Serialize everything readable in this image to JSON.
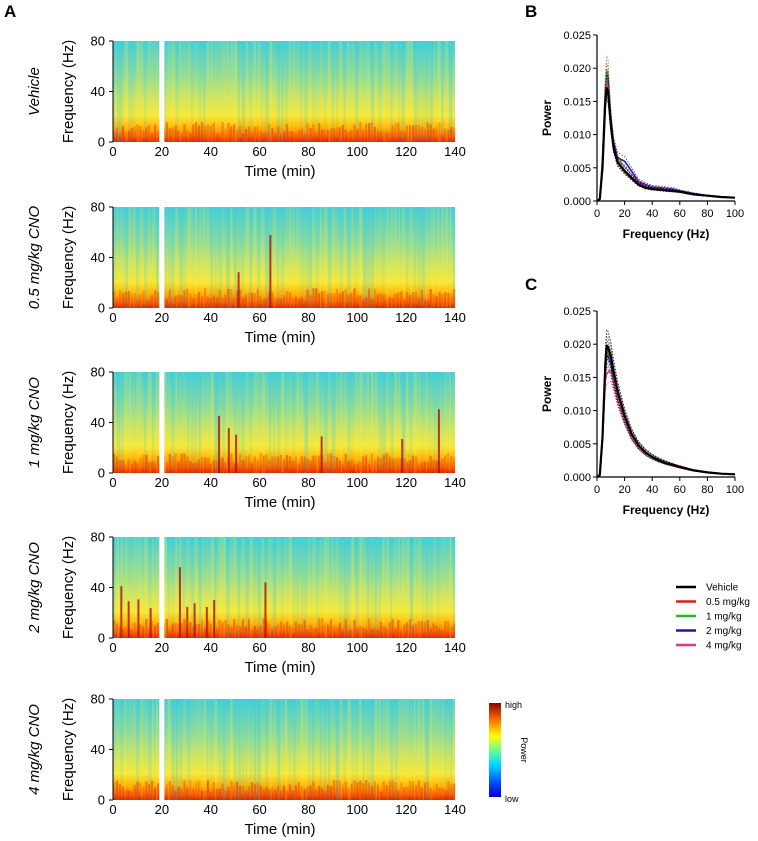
{
  "figure": {
    "panel_a_label": "A",
    "panel_b_label": "B",
    "panel_c_label": "C"
  },
  "colorbar": {
    "high_label": "high",
    "low_label": "low",
    "title": "Power"
  },
  "colors": {
    "spectro_low": "#0000c8",
    "spectro_high": "#8b0000",
    "vehicle": "#000000",
    "dose_0_5": "#e41a1c",
    "dose_1": "#22b822",
    "dose_2": "#1a1aa8",
    "dose_4": "#e0348c"
  },
  "legend": {
    "entries": [
      {
        "label": "Vehicle",
        "color": "#000000"
      },
      {
        "label": "0.5 mg/kg",
        "color": "#e41a1c"
      },
      {
        "label": "1 mg/kg",
        "color": "#22b822"
      },
      {
        "label": "2 mg/kg",
        "color": "#1a1aa8"
      },
      {
        "label": "4 mg/kg",
        "color": "#e0348c"
      }
    ]
  },
  "chart_data": [
    {
      "type": "heatmap",
      "panel": "A",
      "title": "Vehicle",
      "xlabel": "Time (min)",
      "ylabel": "Frequency (Hz)",
      "xlim": [
        0,
        140
      ],
      "ylim": [
        0,
        80
      ],
      "xticks": [
        "0",
        "20",
        "40",
        "60",
        "80",
        "100",
        "120",
        "140"
      ],
      "yticks": [
        "0",
        "40",
        "80"
      ],
      "gap_min": 20,
      "burst_times_min": [],
      "colormap": "jet"
    },
    {
      "type": "heatmap",
      "panel": "A",
      "title": "0.5 mg/kg CNO",
      "xlabel": "Time (min)",
      "ylabel": "Frequency (Hz)",
      "xlim": [
        0,
        140
      ],
      "ylim": [
        0,
        80
      ],
      "xticks": [
        "0",
        "20",
        "40",
        "60",
        "80",
        "100",
        "120",
        "140"
      ],
      "yticks": [
        "0",
        "40",
        "80"
      ],
      "gap_min": 20,
      "burst_times_min": [
        51,
        64
      ],
      "colormap": "jet"
    },
    {
      "type": "heatmap",
      "panel": "A",
      "title": "1 mg/kg CNO",
      "xlabel": "Time (min)",
      "ylabel": "Frequency (Hz)",
      "xlim": [
        0,
        140
      ],
      "ylim": [
        0,
        80
      ],
      "xticks": [
        "0",
        "20",
        "40",
        "60",
        "80",
        "100",
        "120",
        "140"
      ],
      "yticks": [
        "0",
        "40",
        "80"
      ],
      "gap_min": 20,
      "burst_times_min": [
        43,
        47,
        50,
        85,
        118,
        133
      ],
      "colormap": "jet"
    },
    {
      "type": "heatmap",
      "panel": "A",
      "title": "2 mg/kg CNO",
      "xlabel": "Time (min)",
      "ylabel": "Frequency (Hz)",
      "xlim": [
        0,
        140
      ],
      "ylim": [
        0,
        80
      ],
      "xticks": [
        "0",
        "20",
        "40",
        "60",
        "80",
        "100",
        "120",
        "140"
      ],
      "yticks": [
        "0",
        "40",
        "80"
      ],
      "gap_min": 20,
      "burst_times_min": [
        3,
        6,
        10,
        15,
        27,
        30,
        33,
        38,
        41,
        62
      ],
      "colormap": "jet"
    },
    {
      "type": "heatmap",
      "panel": "A",
      "title": "4 mg/kg CNO",
      "xlabel": "Time (min)",
      "ylabel": "Frequency (Hz)",
      "xlim": [
        0,
        140
      ],
      "ylim": [
        0,
        80
      ],
      "xticks": [
        "0",
        "20",
        "40",
        "60",
        "80",
        "100",
        "120",
        "140"
      ],
      "yticks": [
        "0",
        "40",
        "80"
      ],
      "gap_min": 20,
      "burst_times_min": [],
      "colormap": "jet"
    },
    {
      "type": "line",
      "panel": "B",
      "xlabel": "Frequency (Hz)",
      "ylabel": "Power",
      "xlim": [
        0,
        100
      ],
      "ylim": [
        0,
        0.025
      ],
      "xticks": [
        "0",
        "20",
        "40",
        "60",
        "80",
        "100"
      ],
      "yticks": [
        "0.000",
        "0.005",
        "0.010",
        "0.015",
        "0.020",
        "0.025"
      ],
      "x": [
        0,
        2,
        4,
        6,
        7,
        8,
        10,
        12,
        15,
        20,
        25,
        30,
        35,
        40,
        45,
        50,
        55,
        60,
        70,
        80,
        90,
        100
      ],
      "series": [
        {
          "name": "Vehicle",
          "values": [
            0,
            0.0003,
            0.005,
            0.015,
            0.017,
            0.0165,
            0.0115,
            0.008,
            0.0058,
            0.0045,
            0.0035,
            0.0025,
            0.002,
            0.0018,
            0.0017,
            0.0016,
            0.0015,
            0.0014,
            0.001,
            0.0008,
            0.0006,
            0.0005
          ]
        },
        {
          "name": "0.5 mg/kg",
          "values": [
            0,
            0.0003,
            0.006,
            0.016,
            0.0185,
            0.018,
            0.012,
            0.0082,
            0.006,
            0.0046,
            0.0036,
            0.0026,
            0.0022,
            0.0019,
            0.0018,
            0.0017,
            0.0016,
            0.0014,
            0.001,
            0.0008,
            0.0006,
            0.0005
          ]
        },
        {
          "name": "1 mg/kg",
          "values": [
            0,
            0.0003,
            0.0065,
            0.017,
            0.0195,
            0.019,
            0.0125,
            0.0085,
            0.0062,
            0.0046,
            0.0036,
            0.0027,
            0.0023,
            0.002,
            0.0019,
            0.0018,
            0.0016,
            0.0015,
            0.0011,
            0.0008,
            0.0006,
            0.0005
          ]
        },
        {
          "name": "2 mg/kg",
          "values": [
            0,
            0.0003,
            0.0055,
            0.0155,
            0.0175,
            0.017,
            0.012,
            0.0085,
            0.0065,
            0.006,
            0.0045,
            0.003,
            0.0025,
            0.0021,
            0.002,
            0.0019,
            0.0018,
            0.0015,
            0.0011,
            0.0008,
            0.0006,
            0.0005
          ]
        },
        {
          "name": "4 mg/kg",
          "values": [
            0,
            0.0003,
            0.0055,
            0.0155,
            0.0178,
            0.0172,
            0.0118,
            0.0082,
            0.006,
            0.0046,
            0.0036,
            0.0027,
            0.0022,
            0.0019,
            0.0018,
            0.0017,
            0.0016,
            0.0014,
            0.001,
            0.0008,
            0.0006,
            0.0005
          ]
        }
      ]
    },
    {
      "type": "line",
      "panel": "C",
      "xlabel": "Frequency (Hz)",
      "ylabel": "Power",
      "xlim": [
        0,
        100
      ],
      "ylim": [
        0,
        0.025
      ],
      "xticks": [
        "0",
        "20",
        "40",
        "60",
        "80",
        "100"
      ],
      "yticks": [
        "0.000",
        "0.005",
        "0.010",
        "0.015",
        "0.020",
        "0.025"
      ],
      "x": [
        0,
        2,
        4,
        6,
        7,
        8,
        10,
        12,
        15,
        20,
        25,
        30,
        35,
        40,
        45,
        50,
        55,
        60,
        70,
        80,
        90,
        100
      ],
      "series": [
        {
          "name": "Vehicle",
          "values": [
            0,
            0.0003,
            0.006,
            0.017,
            0.0198,
            0.0196,
            0.0182,
            0.0158,
            0.0128,
            0.0092,
            0.0065,
            0.0048,
            0.0037,
            0.003,
            0.0025,
            0.0021,
            0.0018,
            0.0015,
            0.001,
            0.0007,
            0.0005,
            0.0004
          ]
        },
        {
          "name": "0.5 mg/kg",
          "values": [
            0,
            0.0003,
            0.006,
            0.0165,
            0.0188,
            0.0187,
            0.0175,
            0.0152,
            0.0124,
            0.009,
            0.0064,
            0.0047,
            0.0037,
            0.003,
            0.0025,
            0.0021,
            0.0018,
            0.0015,
            0.001,
            0.0007,
            0.0005,
            0.0004
          ]
        },
        {
          "name": "1 mg/kg",
          "values": [
            0,
            0.0003,
            0.006,
            0.0168,
            0.0192,
            0.019,
            0.0177,
            0.0154,
            0.0126,
            0.0091,
            0.0065,
            0.0048,
            0.0038,
            0.0031,
            0.0026,
            0.0022,
            0.0018,
            0.0015,
            0.001,
            0.0007,
            0.0005,
            0.0004
          ]
        },
        {
          "name": "2 mg/kg",
          "values": [
            0,
            0.0003,
            0.006,
            0.016,
            0.0183,
            0.0182,
            0.017,
            0.0148,
            0.0121,
            0.0088,
            0.0063,
            0.0047,
            0.0037,
            0.003,
            0.0025,
            0.0021,
            0.0018,
            0.0015,
            0.001,
            0.0007,
            0.0005,
            0.0004
          ]
        },
        {
          "name": "4 mg/kg",
          "values": [
            0,
            0.0003,
            0.0055,
            0.0145,
            0.0155,
            0.0158,
            0.016,
            0.0145,
            0.0118,
            0.0087,
            0.0062,
            0.0046,
            0.0036,
            0.003,
            0.0025,
            0.0021,
            0.0018,
            0.0015,
            0.001,
            0.0007,
            0.0005,
            0.0004
          ]
        }
      ]
    }
  ]
}
